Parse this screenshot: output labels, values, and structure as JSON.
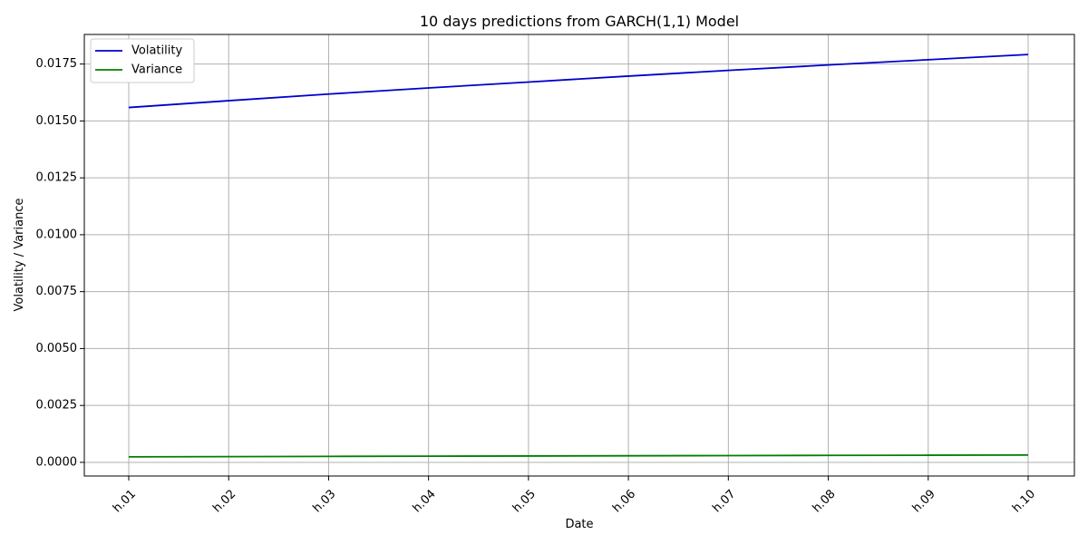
{
  "chart_data": {
    "type": "line",
    "title": "10 days predictions from GARCH(1,1) Model",
    "xlabel": "Date",
    "ylabel": "Volatility / Variance",
    "categories": [
      "h.01",
      "h.02",
      "h.03",
      "h.04",
      "h.05",
      "h.06",
      "h.07",
      "h.08",
      "h.09",
      "h.10"
    ],
    "ylim": [
      -0.0006,
      0.0188
    ],
    "yticks": [
      "0.0000",
      "0.0025",
      "0.0050",
      "0.0075",
      "0.0100",
      "0.0125",
      "0.0150",
      "0.0175"
    ],
    "grid": true,
    "legend_position": "top-left",
    "series": [
      {
        "name": "Volatility",
        "color": "#0000cc",
        "values": [
          0.01559,
          0.01589,
          0.01618,
          0.01645,
          0.01671,
          0.01697,
          0.01722,
          0.01746,
          0.01769,
          0.01792
        ]
      },
      {
        "name": "Variance",
        "color": "#008000",
        "values": [
          0.000243,
          0.000252,
          0.000262,
          0.000271,
          0.000279,
          0.000288,
          0.000297,
          0.000305,
          0.000313,
          0.000321
        ]
      }
    ]
  }
}
